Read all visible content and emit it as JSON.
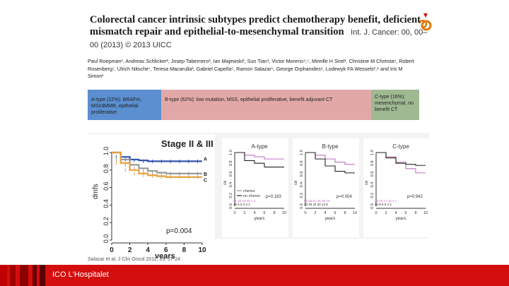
{
  "slide": {
    "title": "Colorectal cancer intrinsic subtypes predict chemotherapy benefit, deficient mismatch repair and epithelial-to-mesenchymal transition",
    "journal": "Int. J. Cancer: 00, 00–00 (2013) © 2013 UICC",
    "authors": "Paul Roepman¹, Andreas Schlicker², Josep Tabernero³, Ian Majewski², Sun Tian¹, Victor Moreno⁴,⁵, Mireille H Snel¹, Christine M Chresta⁶, Robert Rosenberg⁷, Ulrich Nitsche⁷, Teresa Macarulla³, Gabriel Capella⁵, Ramon Salazar⁵, George Orphanides⁶, Lodewyk FA Wessels²,⁸ and Iris M Simon¹",
    "subtypes": {
      "a": "A-type (22%): BRAFm, MSI/dMMR, epithelial proliferative",
      "b": "B-type (62%): low mutation, MSS, epithelial proliferative, benefit adjuvant CT",
      "c": "C-type (16%): mesenchymal, no benefit CT"
    },
    "caption": "Salazar et al, J Clin Oncol 2011; 29: 17-24",
    "footer": "ICO L'Hospitalet"
  },
  "colors": {
    "brand_red": "#d40e0e",
    "a_type": "#5b8fcf",
    "b_type": "#e2a8a8",
    "c_type": "#9fb992",
    "chemo": "#c070c0",
    "no_chemo": "#222222"
  },
  "main_km": {
    "title": "Stage II & III",
    "ylabel": "dmfs",
    "xlabel": "years",
    "pvalue": "p=0.004",
    "curve_labels": [
      "A",
      "B",
      "C"
    ],
    "yticks": [
      "0.0",
      "0.2",
      "0.4",
      "0.6",
      "0.8",
      "1.0"
    ],
    "xticks": [
      "0",
      "2",
      "4",
      "6",
      "8",
      "10"
    ]
  },
  "small_km": [
    {
      "title": "A-type",
      "pvalue": "p=0.183",
      "legend": [
        "chemo",
        "no chemo"
      ],
      "risk_top": "21 20 19 16 7 2",
      "risk_bottom": "45 6 5 4 3 1",
      "xlabel": "years",
      "ylabel": "ce"
    },
    {
      "title": "B-type",
      "pvalue": "p=0.004",
      "legend": [],
      "risk_top": "63 56 51 45 28 10",
      "risk_bottom": "34 29 24 20 14 8",
      "xlabel": "years",
      "ylabel": "ce"
    },
    {
      "title": "C-type",
      "pvalue": "p=0.942",
      "legend": [],
      "risk_top": "23 20 17 15 4 1",
      "risk_bottom": "14 9 6 5 4 2",
      "xlabel": "years",
      "ylabel": "ce"
    }
  ],
  "chart_data": {
    "type": "line",
    "title": "Stage II & III",
    "xlabel": "years",
    "ylabel": "dmfs",
    "xlim": [
      0,
      10
    ],
    "ylim": [
      0,
      1
    ],
    "x": [
      0,
      1,
      2,
      3,
      4,
      5,
      6,
      7,
      8,
      9,
      10
    ],
    "series": [
      {
        "name": "A",
        "values": [
          1.0,
          0.95,
          0.92,
          0.91,
          0.9,
          0.9,
          0.9,
          0.9,
          0.9,
          0.9,
          0.9
        ]
      },
      {
        "name": "B",
        "values": [
          1.0,
          0.92,
          0.86,
          0.82,
          0.79,
          0.77,
          0.76,
          0.76,
          0.76,
          0.76,
          0.76
        ]
      },
      {
        "name": "C",
        "values": [
          1.0,
          0.88,
          0.8,
          0.76,
          0.74,
          0.73,
          0.72,
          0.72,
          0.72,
          0.72,
          0.72
        ]
      }
    ]
  }
}
